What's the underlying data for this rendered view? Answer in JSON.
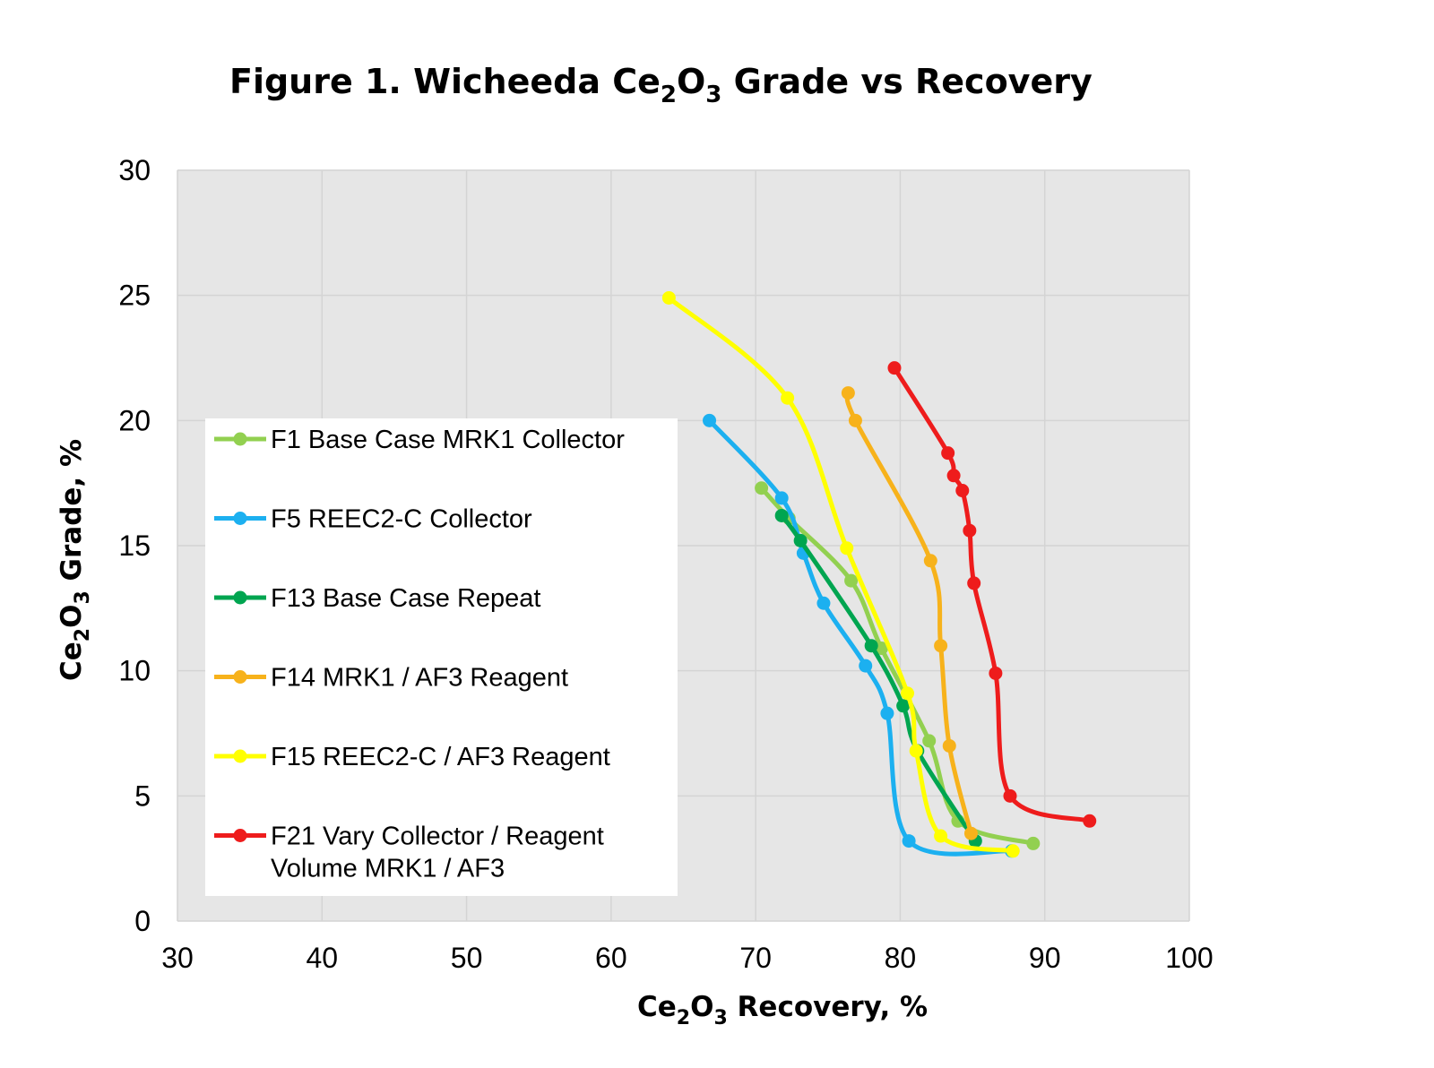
{
  "chart_data": {
    "type": "line",
    "title": {
      "prefix": "Figure 1. Wicheeda Ce",
      "sub1": "2",
      "mid": "O",
      "sub2": "3",
      "suffix": " Grade vs Recovery"
    },
    "xlabel": {
      "prefix": "Ce",
      "sub1": "2",
      "mid": "O",
      "sub2": "3",
      "suffix": " Recovery, %"
    },
    "ylabel": {
      "prefix": "Ce",
      "sub1": "2",
      "mid": "O",
      "sub2": "3",
      "suffix": " Grade, %"
    },
    "xlim": [
      30,
      100
    ],
    "ylim": [
      0,
      30
    ],
    "xticks": [
      "30",
      "40",
      "50",
      "60",
      "70",
      "80",
      "90",
      "100"
    ],
    "yticks": [
      "0",
      "5",
      "10",
      "15",
      "20",
      "25",
      "30"
    ],
    "grid": true,
    "plot_background": "#e6e6e6",
    "legend_position": "left",
    "series": [
      {
        "name": "F1 Base Case MRK1 Collector",
        "color": "#92d050",
        "points": [
          [
            70.4,
            17.3
          ],
          [
            72.3,
            16.1
          ],
          [
            76.6,
            13.6
          ],
          [
            78.7,
            10.9
          ],
          [
            82.0,
            7.2
          ],
          [
            84.0,
            4.0
          ],
          [
            89.2,
            3.1
          ]
        ]
      },
      {
        "name": "F5 REEC2-C Collector",
        "color": "#1cb0f0",
        "points": [
          [
            66.8,
            20.0
          ],
          [
            71.8,
            16.9
          ],
          [
            73.3,
            14.7
          ],
          [
            74.7,
            12.7
          ],
          [
            77.6,
            10.2
          ],
          [
            79.1,
            8.3
          ],
          [
            80.6,
            3.2
          ],
          [
            87.7,
            2.8
          ]
        ]
      },
      {
        "name": "F13 Base Case Repeat",
        "color": "#00a550",
        "points": [
          [
            71.8,
            16.2
          ],
          [
            73.1,
            15.2
          ],
          [
            78.0,
            11.0
          ],
          [
            80.2,
            8.6
          ],
          [
            81.2,
            6.8
          ],
          [
            85.2,
            3.2
          ]
        ]
      },
      {
        "name": "F14 MRK1 / AF3 Reagent",
        "color": "#f7b21b",
        "points": [
          [
            76.4,
            21.1
          ],
          [
            76.9,
            20.0
          ],
          [
            82.1,
            14.4
          ],
          [
            82.8,
            11.0
          ],
          [
            83.4,
            7.0
          ],
          [
            84.9,
            3.5
          ]
        ]
      },
      {
        "name": "F15 REEC2-C / AF3 Reagent",
        "color": "#ffff00",
        "points": [
          [
            64.0,
            24.9
          ],
          [
            72.2,
            20.9
          ],
          [
            76.3,
            14.9
          ],
          [
            80.5,
            9.1
          ],
          [
            81.1,
            6.8
          ],
          [
            82.8,
            3.4
          ],
          [
            87.8,
            2.8
          ]
        ]
      },
      {
        "name": "F21 Vary Collector / Reagent",
        "name_line2": "Volume MRK1 / AF3",
        "color": "#ee1c1c",
        "points": [
          [
            79.6,
            22.1
          ],
          [
            83.3,
            18.7
          ],
          [
            83.7,
            17.8
          ],
          [
            84.3,
            17.2
          ],
          [
            84.8,
            15.6
          ],
          [
            85.1,
            13.5
          ],
          [
            86.6,
            9.9
          ],
          [
            87.6,
            5.0
          ],
          [
            93.1,
            4.0
          ]
        ]
      }
    ]
  }
}
